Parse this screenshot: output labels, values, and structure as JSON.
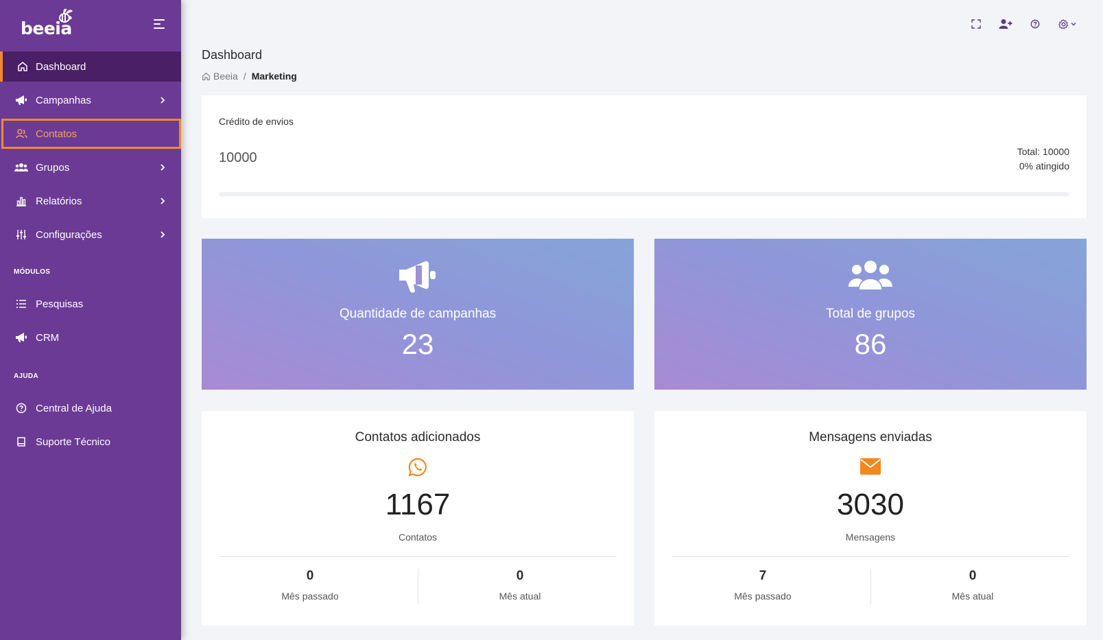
{
  "brand": {
    "name": "beeia"
  },
  "sidebar": {
    "items": [
      {
        "label": "Dashboard",
        "icon": "home-icon"
      },
      {
        "label": "Campanhas",
        "icon": "megaphone-icon"
      },
      {
        "label": "Contatos",
        "icon": "users-icon"
      },
      {
        "label": "Grupos",
        "icon": "group-icon"
      },
      {
        "label": "Relatórios",
        "icon": "bar-chart-icon"
      },
      {
        "label": "Configurações",
        "icon": "sliders-icon"
      }
    ],
    "section_modulos": "MÓDULOS",
    "modulos": [
      {
        "label": "Pesquisas",
        "icon": "list-icon"
      },
      {
        "label": "CRM",
        "icon": "megaphone-icon"
      }
    ],
    "section_ajuda": "AJUDA",
    "ajuda": [
      {
        "label": "Central de Ajuda",
        "icon": "help-circle-icon"
      },
      {
        "label": "Suporte Técnico",
        "icon": "book-icon"
      }
    ]
  },
  "header": {
    "title": "Dashboard",
    "breadcrumb": {
      "home": "Beeia",
      "separator": "/",
      "current": "Marketing"
    }
  },
  "credit": {
    "title": "Crédito de envios",
    "value": "10000",
    "total": "Total: 10000",
    "reached": "0% atingido",
    "progress_fraction": 0
  },
  "campaigns": {
    "label": "Quantidade de campanhas",
    "value": "23"
  },
  "groups": {
    "label": "Total de grupos",
    "value": "86"
  },
  "contacts": {
    "title": "Contatos adicionados",
    "value": "1167",
    "unit": "Contatos",
    "last_month": {
      "value": "0",
      "label": "Mês passado"
    },
    "this_month": {
      "value": "0",
      "label": "Mês atual"
    }
  },
  "messages": {
    "title": "Mensagens enviadas",
    "value": "3030",
    "unit": "Mensagens",
    "last_month": {
      "value": "7",
      "label": "Mês passado"
    },
    "this_month": {
      "value": "0",
      "label": "Mês atual"
    }
  },
  "colors": {
    "sidebar": "#6b3a94",
    "sidebar_active": "#4a1f66",
    "accent": "#f5872f",
    "card_gradient_start": "#a88ad6",
    "card_gradient_end": "#86a4d8"
  }
}
